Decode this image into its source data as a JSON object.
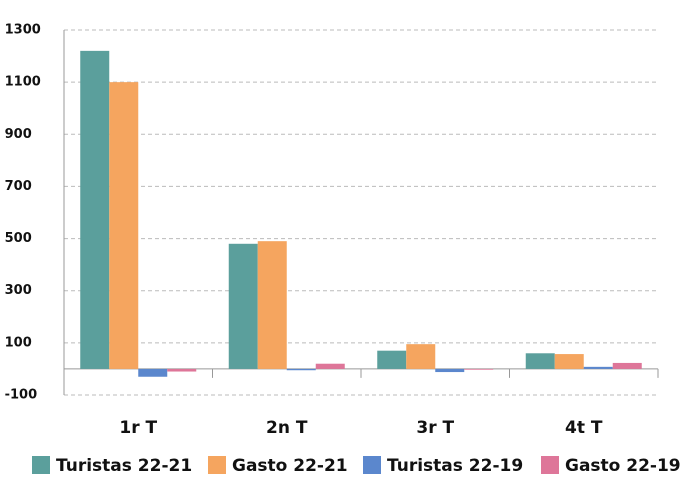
{
  "chart_data": {
    "type": "bar",
    "categories": [
      "1r T",
      "2n T",
      "3r T",
      "4t T"
    ],
    "series": [
      {
        "name": "Turistas 22-21",
        "color": "#5b9f9c",
        "values": [
          1220,
          480,
          70,
          60
        ]
      },
      {
        "name": "Gasto 22-21",
        "color": "#f5a55f",
        "values": [
          1100,
          490,
          95,
          57
        ]
      },
      {
        "name": "Turistas 22-19",
        "color": "#5b87cd",
        "values": [
          -30,
          -5,
          -12,
          8
        ]
      },
      {
        "name": "Gasto 22-19",
        "color": "#de7699",
        "values": [
          -10,
          20,
          -3,
          23
        ]
      }
    ],
    "ylim": [
      -100,
      1300
    ],
    "yticks": [
      -100,
      100,
      300,
      500,
      700,
      900,
      1100,
      1300
    ],
    "grid": true,
    "legend": "bottom"
  }
}
